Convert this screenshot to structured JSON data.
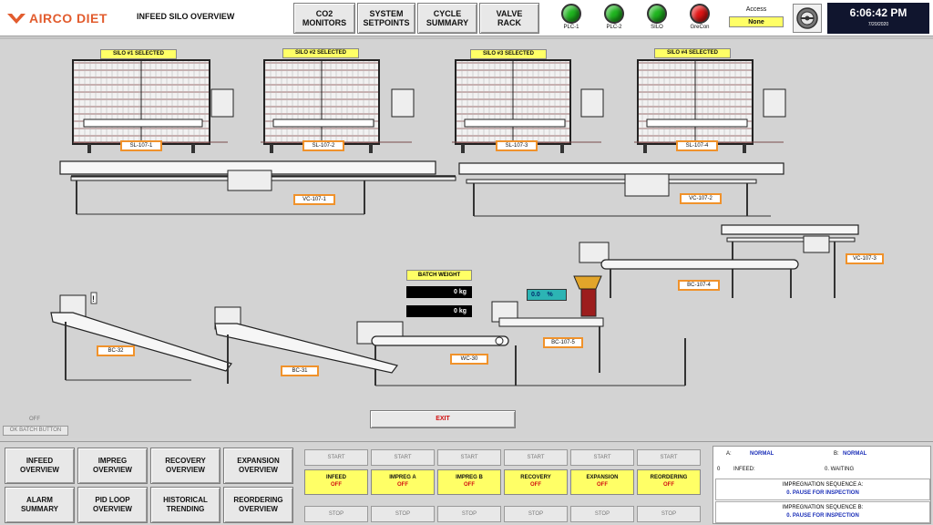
{
  "header": {
    "logo": "AIRCO DIET",
    "screen_title": "INFEED SILO OVERVIEW",
    "buttons": [
      {
        "label": "CO2\nMONITORS"
      },
      {
        "label": "SYSTEM\nSETPOINTS"
      },
      {
        "label": "CYCLE\nSUMMARY"
      },
      {
        "label": "VALVE\nRACK"
      }
    ],
    "plcs": [
      {
        "label": "PLC-1",
        "color": "#1fb51f"
      },
      {
        "label": "PLC-2",
        "color": "#1fb51f"
      },
      {
        "label": "SILO",
        "color": "#1fb51f"
      },
      {
        "label": "GreCon",
        "color": "#e01515"
      }
    ],
    "access_label": "Access",
    "access_value": "None",
    "time": "6:06:42 PM",
    "date": "7/20/2020"
  },
  "process": {
    "silos": [
      {
        "selected": "SILO #1 SELECTED",
        "tag": "SL-107-1"
      },
      {
        "selected": "SILO #2 SELECTED",
        "tag": "SL-107-2"
      },
      {
        "selected": "SILO #3 SELECTED",
        "tag": "SL-107-3"
      },
      {
        "selected": "SILO #4 SELECTED",
        "tag": "SL-107-4"
      }
    ],
    "vc_tags": [
      "VC-107-1",
      "VC-107-2",
      "VC-107-3"
    ],
    "bc_tags": [
      "BC-107-4",
      "BC-107-5",
      "BC-32",
      "BC-31",
      "WC-30"
    ],
    "batch_weight_label": "BATCH WEIGHT",
    "batch_weight_1": "0 kg",
    "batch_weight_2": "0 kg",
    "percent": "0.0    %",
    "exit_label": "EXIT",
    "off_label": "OFF",
    "batch_button": "OK BATCH BUTTON",
    "warning": "!"
  },
  "nav": [
    {
      "label": "INFEED\nOVERVIEW"
    },
    {
      "label": "IMPREG\nOVERVIEW"
    },
    {
      "label": "RECOVERY\nOVERVIEW"
    },
    {
      "label": "EXPANSION\nOVERVIEW"
    },
    {
      "label": "ALARM\nSUMMARY"
    },
    {
      "label": "PID LOOP\nOVERVIEW"
    },
    {
      "label": "HISTORICAL\nTRENDING"
    },
    {
      "label": "REORDERING\nOVERVIEW"
    }
  ],
  "start_label": "START",
  "stop_label": "STOP",
  "stages": [
    {
      "name": "INFEED",
      "state": "OFF"
    },
    {
      "name": "IMPREG A",
      "state": "OFF"
    },
    {
      "name": "IMPREG B",
      "state": "OFF"
    },
    {
      "name": "RECOVERY",
      "state": "OFF"
    },
    {
      "name": "EXPANSION",
      "state": "OFF"
    },
    {
      "name": "REORDERING",
      "state": "OFF"
    }
  ],
  "status": {
    "a_label": "A:",
    "a_value": "NORMAL",
    "b_label": "B:",
    "b_value": "NORMAL",
    "infeed_num": "0",
    "infeed_label": "INFEED:",
    "infeed_value": "0. WAITING",
    "seq_a_title": "IMPREGNATION SEQUENCE A:",
    "seq_a_value": "0. PAUSE FOR INSPECTION",
    "seq_b_title": "IMPREGNATION SEQUENCE B:",
    "seq_b_value": "0. PAUSE FOR INSPECTION"
  }
}
